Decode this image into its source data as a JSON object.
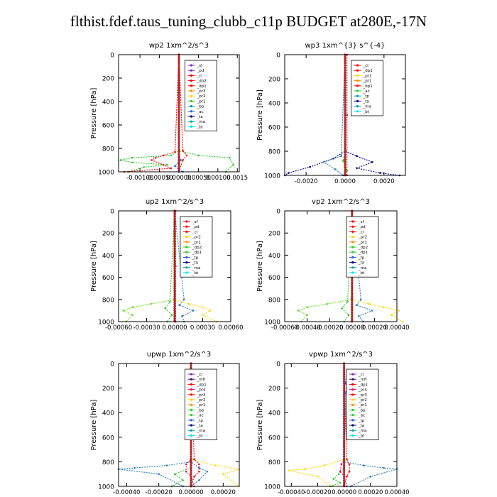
{
  "page_title": "flthist.fdef.taus_tuning_clubb_c11p  BUDGET at280E,-17N",
  "colors": {
    "frame": "#000000",
    "red": "#ff0000",
    "darkred": "#b22222",
    "purple": "#7b2fbe",
    "indigo": "#4b0082",
    "magenta": "#e0186c",
    "orange": "#ff8c00",
    "yellow": "#ffd700",
    "green": "#2ecc2e",
    "lightgreen": "#66dd22",
    "blue": "#1e64d8",
    "steelblue": "#2a7fb5",
    "navy": "#000080",
    "teal": "#00a0a0",
    "cyan": "#00e0ff"
  },
  "chart_data": [
    {
      "type": "line",
      "title": "wp2   1xm^2/s^3",
      "ylabel": "Pressure [hPa]",
      "ylim": [
        1000,
        0
      ],
      "xlim": [
        -0.00155,
        0.00155
      ],
      "yticks": [
        "0",
        "200",
        "400",
        "600",
        "800",
        "1000"
      ],
      "xticks": [
        "-0.00100",
        "-0.00050",
        "0.00000",
        "0.00050",
        "0.00100",
        "0.0015"
      ],
      "xtick_values": [
        -0.001,
        -0.0005,
        0,
        0.0005,
        0.001,
        0.0015
      ],
      "legend": [
        "_sf",
        "_pd",
        "_cl",
        "_dp2",
        "_dp1",
        "_pr3",
        "_pr2",
        "_pr1",
        "_bp",
        "_ac",
        "_ta",
        "_ma",
        "_bt"
      ],
      "legend_colors": [
        "purple",
        "purple",
        "red",
        "red",
        "red",
        "orange",
        "yellow",
        "green",
        "teal",
        "blue",
        "navy",
        "teal",
        "cyan"
      ],
      "series": [
        {
          "color": "green",
          "x": [
            0,
            0,
            -0.0002,
            -0.0012,
            -0.0015,
            -0.0012,
            -0.0003,
            -0.0009,
            -0.0013
          ],
          "y": [
            0,
            820,
            860,
            880,
            900,
            920,
            940,
            960,
            1000
          ]
        },
        {
          "color": "green",
          "x": [
            0,
            0,
            0.0005,
            0.0013,
            0.0014,
            0.0012
          ],
          "y": [
            0,
            820,
            860,
            880,
            940,
            1000
          ]
        },
        {
          "color": "red",
          "x": [
            0,
            -0.0001,
            -0.0004,
            -0.0006,
            -0.0007,
            -0.0004,
            -0.0002,
            -0.0014
          ],
          "y": [
            0,
            830,
            860,
            880,
            900,
            940,
            970,
            1000
          ]
        },
        {
          "color": "red",
          "x": [
            0,
            0.0001,
            0.0002,
            0.0001,
            0
          ],
          "y": [
            0,
            820,
            860,
            900,
            1000
          ]
        },
        {
          "color": "blue",
          "x": [
            0,
            0,
            5e-05,
            -0.0001,
            0,
            0.0001
          ],
          "y": [
            0,
            850,
            900,
            950,
            980,
            1000
          ]
        },
        {
          "color": "purple",
          "x": [
            0,
            0,
            0
          ],
          "y": [
            0,
            500,
            1000
          ]
        }
      ]
    },
    {
      "type": "line",
      "title": "wp3   1xm^{3} s^{-4}",
      "ylabel": "Pressure [hPa]",
      "ylim": [
        1000,
        0
      ],
      "xlim": [
        -0.0031,
        0.0031
      ],
      "yticks": [
        "0",
        "200",
        "400",
        "600",
        "800",
        "1000"
      ],
      "xticks": [
        "-0.0020",
        "0.0000",
        "0.0020"
      ],
      "xtick_values": [
        -0.002,
        0,
        0.002
      ],
      "legend": [
        "_cl",
        "_dp1",
        "_pr2",
        "_pr1",
        "_bp1",
        "_ac",
        "_tp",
        "_ta",
        "_ma",
        "_bt"
      ],
      "legend_colors": [
        "red",
        "red",
        "yellow",
        "orange",
        "red",
        "green",
        "teal",
        "navy",
        "teal",
        "cyan"
      ],
      "series": [
        {
          "color": "navy",
          "x": [
            0,
            0,
            -0.0006,
            -0.0018,
            -0.0029,
            -0.0031
          ],
          "y": [
            0,
            800,
            860,
            930,
            980,
            1000
          ]
        },
        {
          "color": "navy",
          "x": [
            0,
            0,
            0.0006,
            0.0014,
            0.0006,
            0.0018,
            0.0028
          ],
          "y": [
            0,
            800,
            840,
            890,
            940,
            980,
            1000
          ]
        },
        {
          "color": "steelblue",
          "x": [
            0,
            -0.0002,
            -0.0011,
            -0.0005,
            -0.0001
          ],
          "y": [
            0,
            840,
            890,
            950,
            1000
          ]
        },
        {
          "color": "green",
          "x": [
            0,
            0,
            -0.0001,
            0.0001,
            0
          ],
          "y": [
            0,
            800,
            880,
            960,
            1000
          ]
        },
        {
          "color": "red",
          "x": [
            0,
            0,
            0
          ],
          "y": [
            0,
            500,
            1000
          ]
        },
        {
          "color": "darkred",
          "x": [
            0.0001,
            0.0001,
            0.0001
          ],
          "y": [
            0,
            500,
            1000
          ]
        }
      ]
    },
    {
      "type": "line",
      "title": "up2   1xm^2/s^3",
      "ylabel": "Pressure [hPa]",
      "ylim": [
        1000,
        0
      ],
      "xlim": [
        -0.0006,
        0.0006
      ],
      "yticks": [
        "0",
        "200",
        "400",
        "600",
        "800",
        "1000"
      ],
      "xticks": [
        "-0.00060",
        "-0.00030",
        "0.00000",
        "0.00030",
        "0.00060"
      ],
      "xtick_values": [
        -0.0006,
        -0.0003,
        0,
        0.0003,
        0.0006
      ],
      "legend": [
        "_sf",
        "_pd",
        "_cl",
        "_pr2",
        "_pr1",
        "_dp2",
        "_dp1",
        "_tp",
        "_ta",
        "_ma",
        "_bt"
      ],
      "legend_colors": [
        "red",
        "red",
        "red",
        "yellow",
        "orange",
        "green",
        "green",
        "blue",
        "navy",
        "teal",
        "cyan"
      ],
      "series": [
        {
          "color": "lightgreen",
          "x": [
            0,
            0,
            -0.00025,
            -0.00045,
            -0.00055,
            -0.00045,
            -0.00052
          ],
          "y": [
            0,
            800,
            840,
            870,
            900,
            940,
            1000
          ]
        },
        {
          "color": "yellow",
          "x": [
            0,
            0,
            0.00015,
            0.0003,
            0.00038,
            0.0003,
            0.00045
          ],
          "y": [
            0,
            800,
            840,
            870,
            900,
            940,
            1000
          ]
        },
        {
          "color": "steelblue",
          "x": [
            0,
            0.0001,
            5e-05,
            0.0002,
            8e-05,
            0.0001
          ],
          "y": [
            0,
            800,
            850,
            900,
            950,
            1000
          ]
        },
        {
          "color": "green",
          "x": [
            0,
            -5e-05,
            -0.0001,
            -3e-05,
            -8e-05
          ],
          "y": [
            0,
            820,
            880,
            940,
            1000
          ]
        },
        {
          "color": "red",
          "x": [
            0,
            0,
            0
          ],
          "y": [
            0,
            500,
            1000
          ]
        },
        {
          "color": "darkred",
          "x": [
            1e-05,
            1e-05,
            1e-05
          ],
          "y": [
            0,
            500,
            1000
          ]
        }
      ]
    },
    {
      "type": "line",
      "title": "vp2   1xm^2/s^3",
      "ylabel": "Pressure [hPa]",
      "ylim": [
        1000,
        0
      ],
      "xlim": [
        -0.0006,
        0.0004
      ],
      "yticks": [
        "0",
        "200",
        "400",
        "600",
        "800",
        "1000"
      ],
      "xticks": [
        "-0.00060",
        "-0.00040",
        "-0.00020",
        "0.00000",
        "0.00020",
        "0.00040"
      ],
      "xtick_values": [
        -0.0006,
        -0.0004,
        -0.0002,
        0,
        0.0002,
        0.0004
      ],
      "legend": [
        "_sf",
        "_pd",
        "_cl",
        "_pr2",
        "_pr1",
        "_dp2",
        "_dp1",
        "_tp",
        "_ta",
        "_ma",
        "_bt"
      ],
      "legend_colors": [
        "red",
        "red",
        "red",
        "yellow",
        "orange",
        "green",
        "green",
        "blue",
        "navy",
        "teal",
        "cyan"
      ],
      "series": [
        {
          "color": "lightgreen",
          "x": [
            0,
            0,
            -0.00022,
            -0.0004,
            -0.00048,
            -0.0004,
            -0.00045
          ],
          "y": [
            0,
            800,
            840,
            870,
            900,
            940,
            1000
          ]
        },
        {
          "color": "yellow",
          "x": [
            0,
            0,
            0.00015,
            0.00028,
            0.00042,
            0.00035,
            0.00045
          ],
          "y": [
            0,
            800,
            840,
            870,
            900,
            940,
            1000
          ]
        },
        {
          "color": "steelblue",
          "x": [
            0,
            8e-05,
            4e-05,
            0.00018,
            6e-05,
            0.0001
          ],
          "y": [
            0,
            800,
            850,
            900,
            950,
            1000
          ]
        },
        {
          "color": "green",
          "x": [
            0,
            -4e-05,
            -9e-05,
            -3e-05,
            -7e-05
          ],
          "y": [
            0,
            820,
            880,
            940,
            1000
          ]
        },
        {
          "color": "blue",
          "x": [
            0,
            1e-05,
            2e-05,
            1e-05,
            0
          ],
          "y": [
            0,
            160,
            200,
            240,
            1000
          ]
        },
        {
          "color": "red",
          "x": [
            0,
            0,
            0
          ],
          "y": [
            0,
            500,
            1000
          ]
        }
      ]
    },
    {
      "type": "line",
      "title": "upwp   1xm^2/s^3",
      "ylabel": "Pressure [hPa]",
      "ylim": [
        1000,
        0
      ],
      "xlim": [
        -0.00045,
        0.0003
      ],
      "yticks": [
        "0",
        "200",
        "400",
        "600",
        "800",
        "1000"
      ],
      "xticks": [
        "-0.00040",
        "-0.00020",
        "0.00000",
        "0.00020"
      ],
      "xtick_values": [
        -0.0004,
        -0.0002,
        0,
        0.0002
      ],
      "legend": [
        "_cl",
        "_mfl",
        "_dp1",
        "_pr4",
        "_pr3",
        "_pr2",
        "_pr1",
        "_bp",
        "_ac",
        "_tp",
        "_ta",
        "_ma",
        "_bt"
      ],
      "legend_colors": [
        "purple",
        "indigo",
        "red",
        "magenta",
        "red",
        "yellow",
        "orange",
        "green",
        "green",
        "blue",
        "navy",
        "teal",
        "cyan"
      ],
      "series": [
        {
          "color": "steelblue",
          "x": [
            0,
            0,
            -0.00015,
            -0.00035,
            -0.00045,
            -0.0002,
            -5e-05
          ],
          "y": [
            0,
            800,
            830,
            850,
            860,
            900,
            1000
          ]
        },
        {
          "color": "steelblue",
          "x": [
            0,
            0,
            5e-05,
            0.0001,
            5e-05,
            0
          ],
          "y": [
            0,
            800,
            850,
            880,
            950,
            1000
          ]
        },
        {
          "color": "yellow",
          "x": [
            0,
            0,
            0.00015,
            0.0003,
            0.0002,
            0.0003
          ],
          "y": [
            0,
            780,
            830,
            860,
            900,
            1000
          ]
        },
        {
          "color": "green",
          "x": [
            0,
            0,
            -0.0001,
            -5e-05,
            -0.00012
          ],
          "y": [
            0,
            850,
            900,
            950,
            1000
          ]
        },
        {
          "color": "magenta",
          "x": [
            0,
            0,
            -3e-05,
            -3e-05,
            0,
            2e-05
          ],
          "y": [
            0,
            780,
            820,
            880,
            920,
            1000
          ]
        },
        {
          "color": "purple",
          "x": [
            0,
            0,
            0
          ],
          "y": [
            0,
            500,
            1000
          ]
        },
        {
          "color": "red",
          "x": [
            0,
            2e-05,
            5e-05,
            5e-05,
            2e-05,
            0
          ],
          "y": [
            0,
            780,
            820,
            880,
            920,
            1000
          ]
        }
      ]
    },
    {
      "type": "line",
      "title": "vpwp   1xm^2/s^3",
      "ylabel": "Pressure [hPa]",
      "ylim": [
        1000,
        0
      ],
      "xlim": [
        -0.00045,
        0.0004
      ],
      "yticks": [
        "0",
        "200",
        "400",
        "600",
        "800",
        "1000"
      ],
      "xticks": [
        "-0.00040",
        "-0.00020",
        "0.00000",
        "0.00020",
        "0.00040"
      ],
      "xtick_values": [
        -0.0004,
        -0.0002,
        0,
        0.0002,
        0.0004
      ],
      "legend": [
        "_cl",
        "_mfl",
        "_dp1",
        "_pr4",
        "_pr3",
        "_pr2",
        "_pr1",
        "_bp",
        "_ac",
        "_tp",
        "_ta",
        "_ma",
        "_bt"
      ],
      "legend_colors": [
        "purple",
        "indigo",
        "red",
        "magenta",
        "red",
        "yellow",
        "orange",
        "green",
        "green",
        "blue",
        "navy",
        "teal",
        "cyan"
      ],
      "series": [
        {
          "color": "yellow",
          "x": [
            0,
            0,
            -0.00015,
            -0.0003,
            -0.00042,
            -0.0002,
            -0.0001
          ],
          "y": [
            0,
            780,
            830,
            860,
            870,
            920,
            1000
          ]
        },
        {
          "color": "steelblue",
          "x": [
            0,
            0,
            0.00015,
            0.0003,
            0.0004,
            0.0002,
            5e-05
          ],
          "y": [
            0,
            800,
            830,
            850,
            860,
            920,
            1000
          ]
        },
        {
          "color": "green",
          "x": [
            0,
            0,
            -4e-05,
            -8e-05,
            -3e-05,
            -0.0001
          ],
          "y": [
            0,
            850,
            900,
            940,
            970,
            1000
          ]
        },
        {
          "color": "magenta",
          "x": [
            0,
            0,
            -2e-05,
            -3e-05,
            0,
            2e-05
          ],
          "y": [
            0,
            780,
            820,
            880,
            920,
            1000
          ]
        },
        {
          "color": "red",
          "x": [
            0,
            2e-05,
            4e-05,
            4e-05,
            2e-05,
            0
          ],
          "y": [
            0,
            780,
            820,
            880,
            920,
            1000
          ]
        },
        {
          "color": "blue",
          "x": [
            0,
            1e-05,
            2e-05,
            1e-05,
            0
          ],
          "y": [
            0,
            160,
            200,
            240,
            1000
          ]
        },
        {
          "color": "purple",
          "x": [
            0,
            0,
            0
          ],
          "y": [
            0,
            500,
            1000
          ]
        }
      ]
    }
  ]
}
